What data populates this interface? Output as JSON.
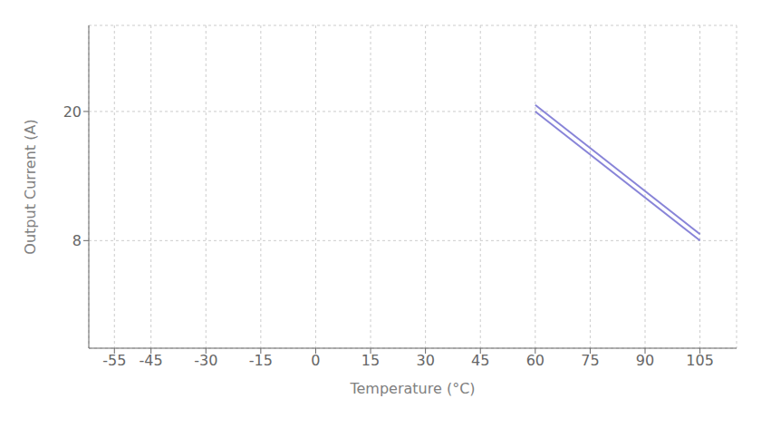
{
  "chart_data": {
    "type": "line",
    "xlabel": "Temperature (°C)",
    "ylabel": "Output Current (A)",
    "x": [
      60,
      105
    ],
    "series": [
      {
        "values": [
          20,
          8
        ]
      },
      {
        "values": [
          20.6,
          8.6
        ]
      }
    ],
    "color": "#8884d8",
    "xlim": [
      -62,
      115
    ],
    "xticks": [
      -55,
      -45,
      -30,
      -15,
      0,
      15,
      30,
      45,
      60,
      75,
      90,
      105
    ],
    "ylim": [
      -2,
      28
    ],
    "yticks": [
      8,
      20
    ],
    "grid": true
  }
}
